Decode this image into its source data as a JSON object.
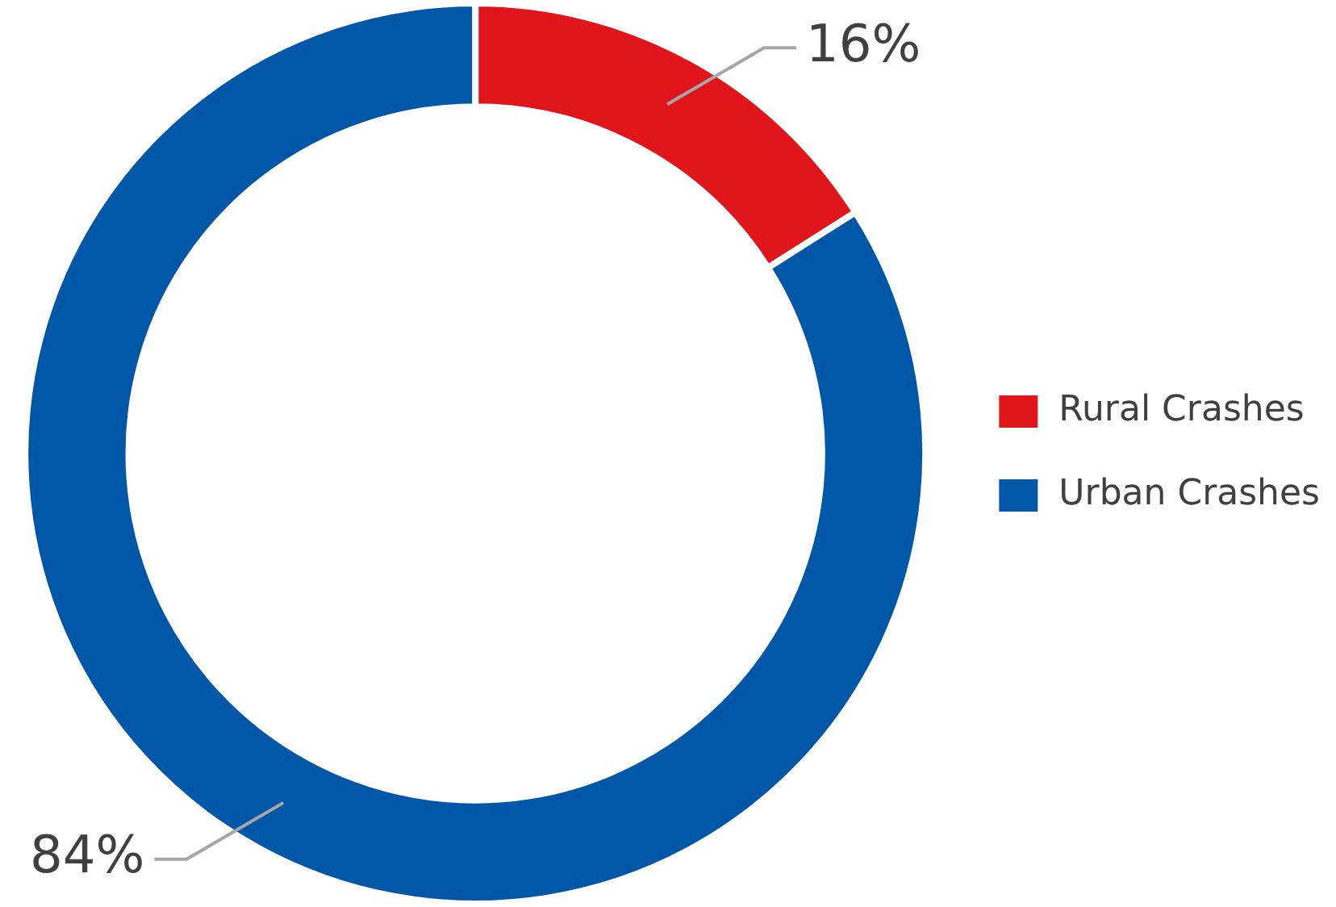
{
  "chart_data": {
    "type": "donut",
    "categories": [
      "Rural Crashes",
      "Urban Crashes"
    ],
    "values": [
      16,
      84
    ],
    "colors": [
      "#e0141b",
      "#0057a8"
    ],
    "value_labels": [
      "16%",
      "84%"
    ],
    "legend": "right"
  }
}
